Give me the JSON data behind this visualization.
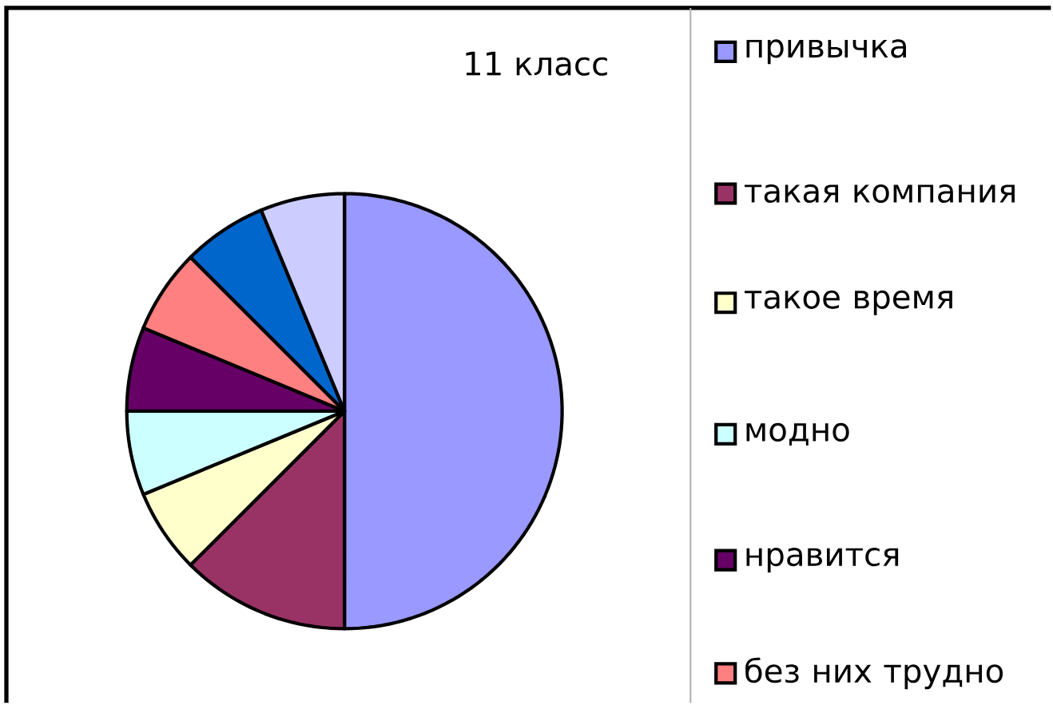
{
  "chart_data": {
    "type": "pie",
    "title": "11 класс",
    "categories": [
      "привычка",
      "такая компания",
      "такое время",
      "модно",
      "нравится",
      "без них трудно",
      null,
      null
    ],
    "values": [
      50,
      12.5,
      6.25,
      6.25,
      6.25,
      6.25,
      6.25,
      6.25
    ],
    "colors": [
      "#9999ff",
      "#993366",
      "#ffffcc",
      "#ccffff",
      "#660066",
      "#ff8080",
      "#0066cc",
      "#ccccff"
    ],
    "legend": "right"
  }
}
